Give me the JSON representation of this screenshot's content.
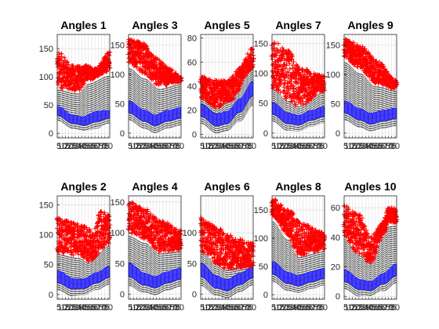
{
  "figure": {
    "background": "#ffffff"
  },
  "colors": {
    "box": "#0000ff",
    "box_fill": "#8c8cff",
    "whisker": "#000000",
    "outlier": "#ff0000",
    "grid": "#d9d9d9"
  },
  "chart_data": [
    {
      "type": "box",
      "title": "Angles 1",
      "ylim": [
        -8,
        175
      ],
      "yticks": [
        0,
        50,
        100,
        150
      ],
      "n_boxes": 80,
      "x_tick_labels": [
        "5",
        "10",
        "15",
        "20",
        "25",
        "30",
        "35",
        "40",
        "45",
        "50",
        "55",
        "60",
        "65",
        "70",
        "75",
        "80"
      ],
      "median_profile": [
        [
          0,
          40
        ],
        [
          0.3,
          25
        ],
        [
          0.5,
          22
        ],
        [
          0.75,
          30
        ],
        [
          1,
          34
        ]
      ],
      "box_halfwidth_profile": [
        [
          0,
          8
        ],
        [
          0.4,
          7
        ],
        [
          0.75,
          9
        ],
        [
          1,
          7
        ]
      ],
      "outliers_upper_profile": [
        [
          0,
          145
        ],
        [
          0.3,
          120
        ],
        [
          0.55,
          120
        ],
        [
          0.75,
          115
        ],
        [
          1,
          145
        ]
      ],
      "outliers_lower_profile": [
        [
          0,
          80
        ],
        [
          0.4,
          75
        ],
        [
          0.6,
          95
        ],
        [
          1,
          110
        ]
      ]
    },
    {
      "type": "box",
      "title": "Angles 2",
      "ylim": [
        -8,
        165
      ],
      "yticks": [
        0,
        50,
        100,
        150
      ],
      "n_boxes": 80,
      "x_tick_labels": [
        "5",
        "10",
        "15",
        "20",
        "25",
        "30",
        "35",
        "40",
        "45",
        "50",
        "55",
        "60",
        "65",
        "70",
        "75",
        "80"
      ],
      "median_profile": [
        [
          0,
          30
        ],
        [
          0.3,
          18
        ],
        [
          0.5,
          18
        ],
        [
          0.75,
          28
        ],
        [
          1,
          38
        ]
      ],
      "box_halfwidth_profile": [
        [
          0,
          10
        ],
        [
          0.5,
          8
        ],
        [
          1,
          9
        ]
      ],
      "outliers_upper_profile": [
        [
          0,
          130
        ],
        [
          0.3,
          120
        ],
        [
          0.55,
          115
        ],
        [
          0.7,
          100
        ],
        [
          0.8,
          140
        ],
        [
          1,
          135
        ]
      ],
      "outliers_lower_profile": [
        [
          0,
          70
        ],
        [
          0.4,
          65
        ],
        [
          0.6,
          55
        ],
        [
          1,
          85
        ]
      ]
    },
    {
      "type": "box",
      "title": "Angles 3",
      "ylim": [
        -8,
        168
      ],
      "yticks": [
        0,
        50,
        100,
        150
      ],
      "n_boxes": 80,
      "x_tick_labels": [
        "5",
        "10",
        "15",
        "20",
        "25",
        "30",
        "35",
        "40",
        "45",
        "50",
        "55",
        "60",
        "65",
        "70",
        "75",
        "80"
      ],
      "median_profile": [
        [
          0,
          45
        ],
        [
          0.3,
          30
        ],
        [
          0.5,
          22
        ],
        [
          0.75,
          30
        ],
        [
          1,
          35
        ]
      ],
      "box_halfwidth_profile": [
        [
          0,
          10
        ],
        [
          0.5,
          9
        ],
        [
          1,
          9
        ]
      ],
      "outliers_upper_profile": [
        [
          0,
          160
        ],
        [
          0.25,
          155
        ],
        [
          0.5,
          130
        ],
        [
          0.8,
          110
        ],
        [
          1,
          95
        ]
      ],
      "outliers_lower_profile": [
        [
          0,
          118
        ],
        [
          0.3,
          100
        ],
        [
          0.6,
          80
        ],
        [
          1,
          88
        ]
      ]
    },
    {
      "type": "box",
      "title": "Angles 4",
      "ylim": [
        -8,
        160
      ],
      "yticks": [
        0,
        50,
        100,
        150
      ],
      "n_boxes": 80,
      "x_tick_labels": [
        "5",
        "10",
        "15",
        "20",
        "25",
        "30",
        "35",
        "40",
        "45",
        "50",
        "55",
        "60",
        "65",
        "70",
        "75",
        "80"
      ],
      "median_profile": [
        [
          0,
          40
        ],
        [
          0.3,
          25
        ],
        [
          0.5,
          20
        ],
        [
          0.75,
          28
        ],
        [
          1,
          34
        ]
      ],
      "box_halfwidth_profile": [
        [
          0,
          11
        ],
        [
          0.5,
          9
        ],
        [
          1,
          9
        ]
      ],
      "outliers_upper_profile": [
        [
          0,
          150
        ],
        [
          0.3,
          140
        ],
        [
          0.6,
          120
        ],
        [
          1,
          105
        ]
      ],
      "outliers_lower_profile": [
        [
          0,
          100
        ],
        [
          0.3,
          90
        ],
        [
          0.6,
          70
        ],
        [
          1,
          72
        ]
      ]
    },
    {
      "type": "box",
      "title": "Angles 5",
      "ylim": [
        -3,
        83
      ],
      "yticks": [
        0,
        20,
        40,
        60,
        80
      ],
      "n_boxes": 80,
      "x_tick_labels": [
        "5",
        "10",
        "15",
        "20",
        "25",
        "30",
        "35",
        "40",
        "45",
        "50",
        "55",
        "60",
        "65",
        "70",
        "75",
        "80"
      ],
      "median_profile": [
        [
          0,
          20
        ],
        [
          0.3,
          12
        ],
        [
          0.5,
          14
        ],
        [
          0.75,
          24
        ],
        [
          1,
          38
        ]
      ],
      "box_halfwidth_profile": [
        [
          0,
          5
        ],
        [
          0.5,
          5
        ],
        [
          1,
          6
        ]
      ],
      "outliers_upper_profile": [
        [
          0,
          48
        ],
        [
          0.3,
          45
        ],
        [
          0.5,
          45
        ],
        [
          0.75,
          55
        ],
        [
          1,
          72
        ]
      ],
      "outliers_lower_profile": [
        [
          0,
          30
        ],
        [
          0.3,
          22
        ],
        [
          0.55,
          28
        ],
        [
          1,
          55
        ]
      ]
    },
    {
      "type": "box",
      "title": "Angles 6",
      "ylim": [
        -8,
        160
      ],
      "yticks": [
        0,
        50,
        100
      ],
      "n_boxes": 80,
      "x_tick_labels": [
        "5",
        "10",
        "15",
        "20",
        "25",
        "30",
        "35",
        "40",
        "45",
        "50",
        "55",
        "60",
        "65",
        "70",
        "75",
        "80"
      ],
      "median_profile": [
        [
          0,
          40
        ],
        [
          0.3,
          20
        ],
        [
          0.5,
          15
        ],
        [
          0.75,
          25
        ],
        [
          1,
          36
        ]
      ],
      "box_halfwidth_profile": [
        [
          0,
          11
        ],
        [
          0.5,
          9
        ],
        [
          1,
          9
        ]
      ],
      "outliers_upper_profile": [
        [
          0,
          125
        ],
        [
          0.3,
          110
        ],
        [
          0.5,
          100
        ],
        [
          0.7,
          90
        ],
        [
          1,
          85
        ]
      ],
      "outliers_lower_profile": [
        [
          0,
          70
        ],
        [
          0.3,
          50
        ],
        [
          0.5,
          40
        ],
        [
          1,
          45
        ]
      ]
    },
    {
      "type": "box",
      "title": "Angles 7",
      "ylim": [
        -8,
        165
      ],
      "yticks": [
        0,
        50,
        100,
        150
      ],
      "n_boxes": 80,
      "x_tick_labels": [
        "5",
        "10",
        "15",
        "20",
        "25",
        "30",
        "35",
        "40",
        "45",
        "50",
        "55",
        "60",
        "65",
        "70",
        "75",
        "80"
      ],
      "median_profile": [
        [
          0,
          42
        ],
        [
          0.3,
          25
        ],
        [
          0.5,
          22
        ],
        [
          0.75,
          30
        ],
        [
          1,
          36
        ]
      ],
      "box_halfwidth_profile": [
        [
          0,
          10
        ],
        [
          0.5,
          8
        ],
        [
          1,
          8
        ]
      ],
      "outliers_upper_profile": [
        [
          0,
          155
        ],
        [
          0.3,
          140
        ],
        [
          0.55,
          110
        ],
        [
          0.8,
          100
        ],
        [
          1,
          95
        ]
      ],
      "outliers_lower_profile": [
        [
          0,
          75
        ],
        [
          0.3,
          55
        ],
        [
          0.5,
          45
        ],
        [
          1,
          70
        ]
      ]
    },
    {
      "type": "box",
      "title": "Angles 8",
      "ylim": [
        -8,
        175
      ],
      "yticks": [
        0,
        50,
        100,
        150
      ],
      "n_boxes": 80,
      "x_tick_labels": [
        "5",
        "10",
        "15",
        "20",
        "25",
        "30",
        "35",
        "40",
        "45",
        "50",
        "55",
        "60",
        "65",
        "70",
        "75",
        "80"
      ],
      "median_profile": [
        [
          0,
          48
        ],
        [
          0.3,
          30
        ],
        [
          0.5,
          25
        ],
        [
          0.75,
          32
        ],
        [
          1,
          38
        ]
      ],
      "box_halfwidth_profile": [
        [
          0,
          11
        ],
        [
          0.5,
          9
        ],
        [
          1,
          9
        ]
      ],
      "outliers_upper_profile": [
        [
          0,
          170
        ],
        [
          0.3,
          150
        ],
        [
          0.6,
          125
        ],
        [
          1,
          110
        ]
      ],
      "outliers_lower_profile": [
        [
          0,
          140
        ],
        [
          0.3,
          105
        ],
        [
          0.5,
          70
        ],
        [
          1,
          80
        ]
      ]
    },
    {
      "type": "box",
      "title": "Angles 9",
      "ylim": [
        -8,
        168
      ],
      "yticks": [
        0,
        50,
        100,
        150
      ],
      "n_boxes": 80,
      "x_tick_labels": [
        "5",
        "10",
        "15",
        "20",
        "25",
        "30",
        "35",
        "40",
        "45",
        "50",
        "55",
        "60",
        "65",
        "70",
        "75",
        "80"
      ],
      "median_profile": [
        [
          0,
          45
        ],
        [
          0.3,
          32
        ],
        [
          0.5,
          25
        ],
        [
          0.75,
          30
        ],
        [
          1,
          34
        ]
      ],
      "box_halfwidth_profile": [
        [
          0,
          10
        ],
        [
          0.5,
          9
        ],
        [
          1,
          9
        ]
      ],
      "outliers_upper_profile": [
        [
          0,
          160
        ],
        [
          0.3,
          150
        ],
        [
          0.6,
          125
        ],
        [
          1,
          90
        ]
      ],
      "outliers_lower_profile": [
        [
          0,
          130
        ],
        [
          0.3,
          110
        ],
        [
          0.6,
          85
        ],
        [
          1,
          75
        ]
      ]
    },
    {
      "type": "box",
      "title": "Angles 10",
      "ylim": [
        -2,
        68
      ],
      "yticks": [
        0,
        20,
        40,
        60
      ],
      "n_boxes": 80,
      "x_tick_labels": [
        "5",
        "10",
        "15",
        "20",
        "25",
        "30",
        "35",
        "40",
        "45",
        "50",
        "55",
        "60",
        "65",
        "70",
        "75",
        "80"
      ],
      "median_profile": [
        [
          0,
          14
        ],
        [
          0.3,
          8
        ],
        [
          0.5,
          7
        ],
        [
          0.75,
          12
        ],
        [
          1,
          18
        ]
      ],
      "box_halfwidth_profile": [
        [
          0,
          4
        ],
        [
          0.5,
          3
        ],
        [
          1,
          4
        ]
      ],
      "outliers_upper_profile": [
        [
          0,
          62
        ],
        [
          0.3,
          55
        ],
        [
          0.5,
          40
        ],
        [
          0.75,
          50
        ],
        [
          0.85,
          60
        ]
      ],
      "outliers_lower_profile": [
        [
          0,
          40
        ],
        [
          0.3,
          28
        ],
        [
          0.5,
          22
        ],
        [
          0.75,
          42
        ],
        [
          0.85,
          50
        ]
      ]
    }
  ]
}
